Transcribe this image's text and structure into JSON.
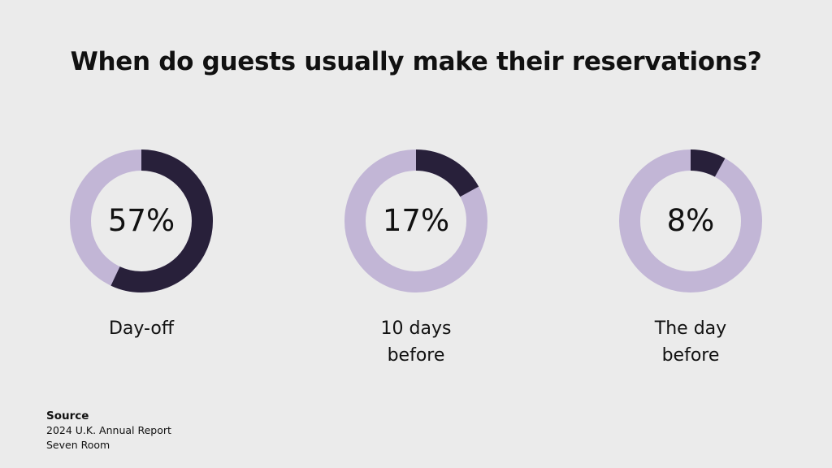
{
  "chart_data": {
    "type": "pie",
    "variant": "donut",
    "title": "When do guests usually make their reservations?",
    "items": [
      {
        "value": 57,
        "value_label": "57%",
        "label_lines": [
          "Day-off"
        ]
      },
      {
        "value": 17,
        "value_label": "17%",
        "label_lines": [
          "10 days",
          "before"
        ]
      },
      {
        "value": 8,
        "value_label": "8%",
        "label_lines": [
          "The day",
          "before"
        ]
      }
    ],
    "colors": {
      "filled": "#28203a",
      "remainder": "#c2b6d6",
      "background": "#ebebeb"
    }
  },
  "source": {
    "heading": "Source",
    "lines": [
      "2024 U.K. Annual Report",
      "Seven Room"
    ]
  }
}
